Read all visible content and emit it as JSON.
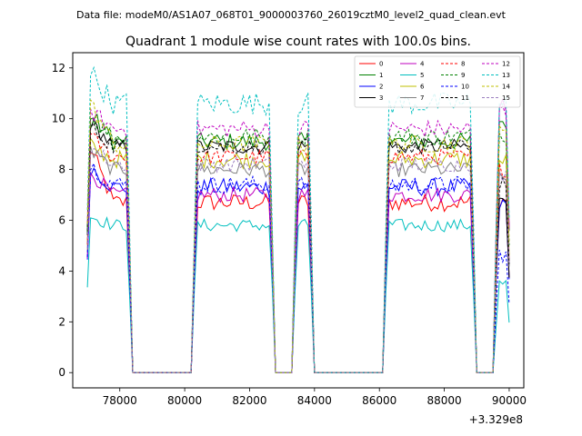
{
  "chart_data": {
    "type": "line",
    "suptitle": "Data file: modeM0/AS1A07_068T01_9000003760_26019cztM0_level2_quad_clean.evt",
    "title": "Quadrant 1 module wise count rates with 100.0s bins.",
    "xlabel": "",
    "ylabel": "",
    "x_offset_label": "+3.329e8",
    "xlim": [
      76550,
      90450
    ],
    "ylim": [
      -0.6,
      12.6
    ],
    "x_ticks": [
      78000,
      80000,
      82000,
      84000,
      86000,
      88000,
      90000
    ],
    "x_tick_labels": [
      "78000",
      "80000",
      "82000",
      "84000",
      "86000",
      "88000",
      "90000"
    ],
    "y_ticks": [
      0,
      2,
      4,
      6,
      8,
      10,
      12
    ],
    "y_tick_labels": [
      "0",
      "2",
      "4",
      "6",
      "8",
      "10",
      "12"
    ],
    "grid": false,
    "legend_position": "top-right",
    "segments": [
      [
        77000,
        78300
      ],
      [
        80300,
        82700
      ],
      [
        83400,
        83900
      ],
      [
        86200,
        88900
      ],
      [
        89600,
        90000
      ]
    ],
    "gap_value": 0,
    "series": [
      {
        "name": "0",
        "color": "#ff0000",
        "dash": "solid",
        "level": 6.7,
        "start": 9.1,
        "noise": 0.35,
        "end": 6.8
      },
      {
        "name": "1",
        "color": "#008000",
        "dash": "solid",
        "level": 9.1,
        "start": 10.3,
        "noise": 0.35,
        "end": 9.9
      },
      {
        "name": "2",
        "color": "#0000ff",
        "dash": "solid",
        "level": 7.3,
        "start": 8.2,
        "noise": 0.35,
        "end": 6.6
      },
      {
        "name": "3",
        "color": "#000000",
        "dash": "solid",
        "level": 8.9,
        "start": 10.0,
        "noise": 0.3,
        "end": 7.0
      },
      {
        "name": "4",
        "color": "#bf00bf",
        "dash": "solid",
        "level": 7.0,
        "start": 8.0,
        "noise": 0.3,
        "end": 10.6
      },
      {
        "name": "5",
        "color": "#00bfbf",
        "dash": "solid",
        "level": 5.8,
        "start": 6.2,
        "noise": 0.25,
        "end": 3.5
      },
      {
        "name": "6",
        "color": "#bfbf00",
        "dash": "solid",
        "level": 8.4,
        "start": 9.0,
        "noise": 0.35,
        "end": 8.3
      },
      {
        "name": "7",
        "color": "#808080",
        "dash": "solid",
        "level": 8.0,
        "start": 8.8,
        "noise": 0.3,
        "end": 7.6
      },
      {
        "name": "8",
        "color": "#ff0000",
        "dash": "dashed",
        "level": 8.5,
        "start": 9.4,
        "noise": 0.3,
        "end": 8.0
      },
      {
        "name": "9",
        "color": "#008000",
        "dash": "dashed",
        "level": 9.3,
        "start": 10.1,
        "noise": 0.35,
        "end": 9.4
      },
      {
        "name": "10",
        "color": "#0000ff",
        "dash": "dashed",
        "level": 7.4,
        "start": 8.3,
        "noise": 0.35,
        "end": 4.7
      },
      {
        "name": "11",
        "color": "#000000",
        "dash": "dashed",
        "level": 8.9,
        "start": 9.8,
        "noise": 0.3,
        "end": 7.5
      },
      {
        "name": "12",
        "color": "#bf00bf",
        "dash": "dashed",
        "level": 9.6,
        "start": 10.4,
        "noise": 0.35,
        "end": 10.3
      },
      {
        "name": "13",
        "color": "#00bfbf",
        "dash": "dashed",
        "level": 10.6,
        "start": 12.0,
        "noise": 0.45,
        "end": 10.9
      },
      {
        "name": "14",
        "color": "#bfbf00",
        "dash": "dashed",
        "level": 9.0,
        "start": 10.8,
        "noise": 0.35,
        "end": 9.4
      },
      {
        "name": "15",
        "color": "#9b7fbf",
        "dash": "dashed",
        "level": 8.2,
        "start": 9.0,
        "noise": 0.3,
        "end": 7.7
      }
    ]
  }
}
